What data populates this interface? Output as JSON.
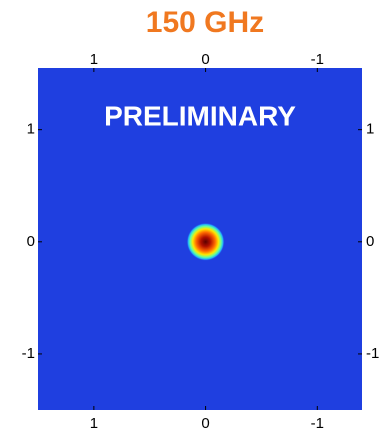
{
  "chart_data": {
    "type": "heatmap",
    "title": "150 GHz",
    "annotation": "PRELIMINARY",
    "xlim": [
      1.5,
      -1.4
    ],
    "ylim": [
      -1.5,
      1.55
    ],
    "xticks": [
      1,
      0,
      -1
    ],
    "yticks": [
      1,
      0,
      -1
    ],
    "title_color": "#f07820",
    "background_color": "#1f3fe0"
  }
}
